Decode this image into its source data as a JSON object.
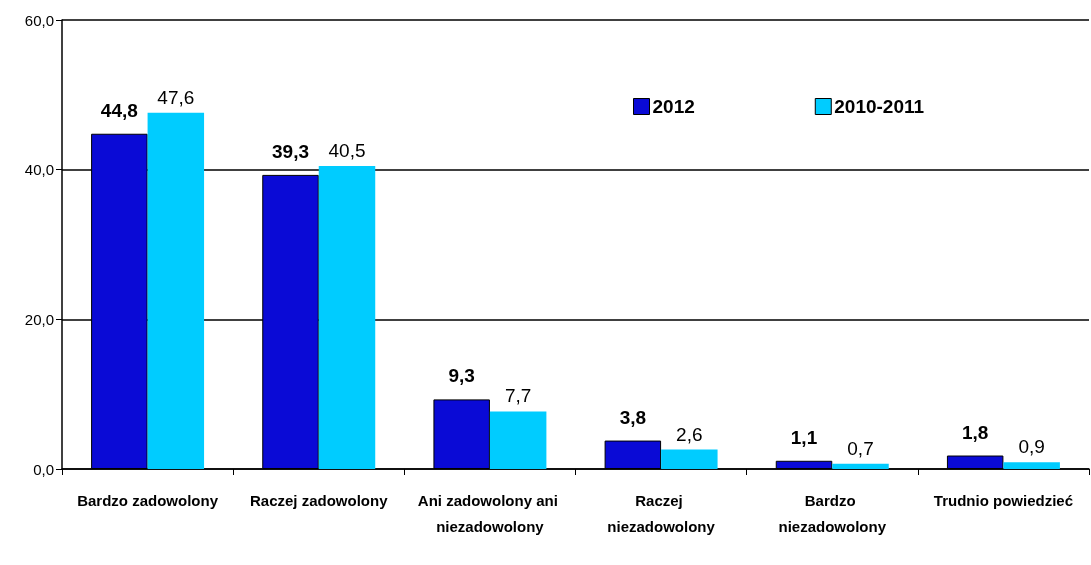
{
  "chart_data": {
    "type": "bar",
    "categories": [
      "Bardzo zadowolony",
      "Raczej zadowolony",
      "Ani zadowolony ani niezadowolony",
      "Raczej niezadowolony",
      "Bardzo niezadowolony",
      "Trudnio powiedzieć"
    ],
    "series": [
      {
        "name": "2012",
        "color": "#0a0ad6",
        "values": [
          44.8,
          39.3,
          9.3,
          3.8,
          1.1,
          1.8
        ],
        "value_labels": [
          "44,8",
          "39,3",
          "9,3",
          "3,8",
          "1,1",
          "1,8"
        ]
      },
      {
        "name": "2010-2011",
        "color": "#00ccff",
        "values": [
          47.6,
          40.5,
          7.7,
          2.6,
          0.7,
          0.9
        ],
        "value_labels": [
          "47,6",
          "40,5",
          "7,7",
          "2,6",
          "0,7",
          "0,9"
        ]
      }
    ],
    "ylim": [
      0,
      60
    ],
    "yticks": [
      {
        "value": 0,
        "label": "0,0"
      },
      {
        "value": 20,
        "label": "20,0"
      },
      {
        "value": 40,
        "label": "40,0"
      },
      {
        "value": 60,
        "label": "60,0"
      }
    ],
    "grid": "y",
    "legend": "top right"
  }
}
